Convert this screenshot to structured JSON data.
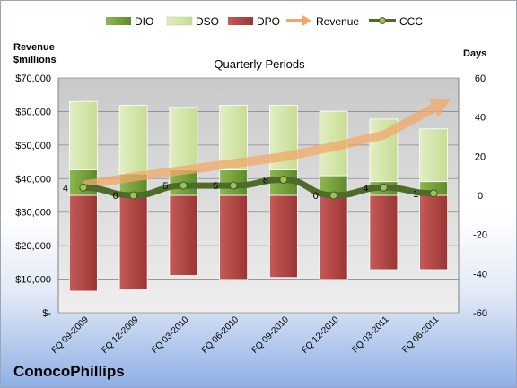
{
  "company": "ConocoPhillips",
  "chart_data": {
    "type": "bar",
    "title": "Quarterly Periods",
    "left_axis_label": [
      "Revenue",
      "$millions"
    ],
    "right_axis_label": "Days",
    "categories": [
      "FQ 09-2009",
      "FQ 12-2009",
      "FQ 03-2010",
      "FQ 06-2010",
      "FQ 09-2010",
      "FQ 12-2010",
      "FQ 03-2011",
      "FQ 06-2011"
    ],
    "left_ticks": [
      "$70,000",
      "$60,000",
      "$50,000",
      "$40,000",
      "$30,000",
      "$20,000",
      "$10,000",
      "$-"
    ],
    "left_ylim": [
      0,
      70000
    ],
    "right_ticks": [
      "60",
      "40",
      "20",
      "0",
      "-20",
      "-40",
      "-60"
    ],
    "right_ylim": [
      -60,
      60
    ],
    "legend_position": "top",
    "series": [
      {
        "name": "DIO",
        "kind": "stacked-bar",
        "color": "#77a33a",
        "values": [
          13,
          11,
          13,
          13,
          13,
          10,
          7,
          7
        ]
      },
      {
        "name": "DSO",
        "kind": "stacked-bar",
        "color": "#d4e6a8",
        "values": [
          35,
          35,
          32,
          33,
          33,
          33,
          32,
          27
        ]
      },
      {
        "name": "DPO",
        "kind": "negative-bar",
        "color": "#b84c4a",
        "values": [
          -49,
          -48,
          -41,
          -43,
          -42,
          -43,
          -38,
          -38
        ]
      },
      {
        "name": "Revenue",
        "kind": "arrow",
        "color": "#f0a868",
        "values": [
          38000,
          40500,
          42500,
          44500,
          46500,
          49500,
          53000,
          61000
        ]
      },
      {
        "name": "CCC",
        "kind": "line",
        "color": "#4e6b2a",
        "values": [
          4,
          0,
          5,
          5,
          8,
          0,
          4,
          1
        ]
      }
    ],
    "ccc_labels": [
      "4",
      "0",
      "5",
      "5",
      "8",
      "0",
      "4",
      "1"
    ]
  }
}
